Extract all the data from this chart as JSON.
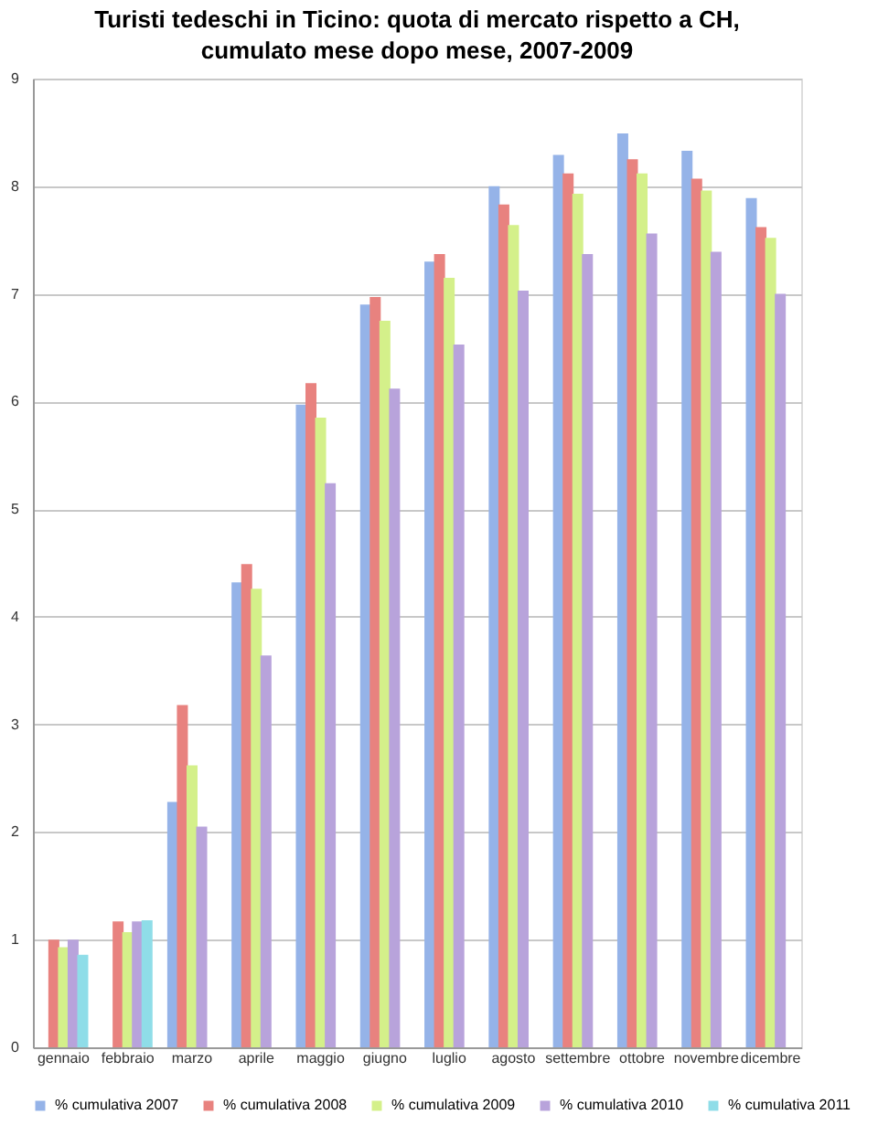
{
  "chart_data": {
    "type": "bar",
    "title": "Turisti tedeschi in Ticino: quota di mercato rispetto a CH, cumulato mese dopo mese, 2007-2009",
    "categories": [
      "gennaio",
      "febbraio",
      "marzo",
      "aprile",
      "maggio",
      "giugno",
      "luglio",
      "agosto",
      "settembre",
      "ottobre",
      "novembre",
      "dicembre"
    ],
    "series": [
      {
        "name": "% cumulativa 2007",
        "color": "#95b3e8",
        "values": [
          null,
          null,
          2.28,
          4.32,
          5.97,
          6.9,
          7.3,
          8.0,
          8.29,
          8.49,
          8.33,
          7.89
        ]
      },
      {
        "name": "% cumulativa 2008",
        "color": "#e8827f",
        "values": [
          1.0,
          1.17,
          3.18,
          4.49,
          6.17,
          6.97,
          7.37,
          7.83,
          8.12,
          8.25,
          8.07,
          7.62
        ]
      },
      {
        "name": "% cumulativa 2009",
        "color": "#d4f08a",
        "values": [
          0.93,
          1.07,
          2.62,
          4.26,
          5.85,
          6.75,
          7.15,
          7.64,
          7.93,
          8.12,
          7.96,
          7.52
        ]
      },
      {
        "name": "% cumulativa 2010",
        "color": "#b8a3db",
        "values": [
          1.0,
          1.17,
          2.05,
          3.64,
          5.24,
          6.12,
          6.53,
          7.03,
          7.37,
          7.56,
          7.39,
          7.0
        ]
      },
      {
        "name": "% cumulativa 2011",
        "color": "#8fdde8",
        "values": [
          0.86,
          1.18,
          null,
          null,
          null,
          null,
          null,
          null,
          null,
          null,
          null,
          null
        ]
      }
    ],
    "ylim": [
      0,
      9
    ],
    "yticks": [
      0,
      1,
      2,
      3,
      4,
      5,
      6,
      7,
      8,
      9
    ],
    "grid": "y",
    "legend": "bottom"
  }
}
